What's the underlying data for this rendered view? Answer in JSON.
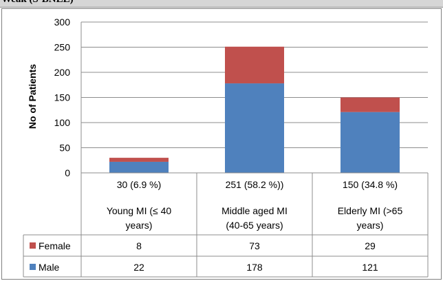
{
  "header": {
    "fragment": "Weak (S-BNLE)"
  },
  "chart_data": {
    "type": "bar",
    "stacked": true,
    "ylabel": "No of Patients",
    "ylim": [
      0,
      300
    ],
    "yticks": [
      0,
      50,
      100,
      150,
      200,
      250,
      300
    ],
    "grid": true,
    "categories": [
      {
        "line1": "30 (6.9 %)",
        "line2": "Young MI (≤ 40",
        "line3": "years)"
      },
      {
        "line1": "251 (58.2 %))",
        "line2": "Middle aged MI",
        "line3": "(40-65 years)"
      },
      {
        "line1": "150 (34.8 %)",
        "line2": "Elderly MI (>65",
        "line3": "years)"
      }
    ],
    "series": [
      {
        "name": "Male",
        "color": "#4f81bd",
        "values": [
          22,
          178,
          121
        ]
      },
      {
        "name": "Female",
        "color": "#c0504d",
        "values": [
          8,
          73,
          29
        ]
      }
    ],
    "table_rows": [
      "Female",
      "Male"
    ]
  }
}
